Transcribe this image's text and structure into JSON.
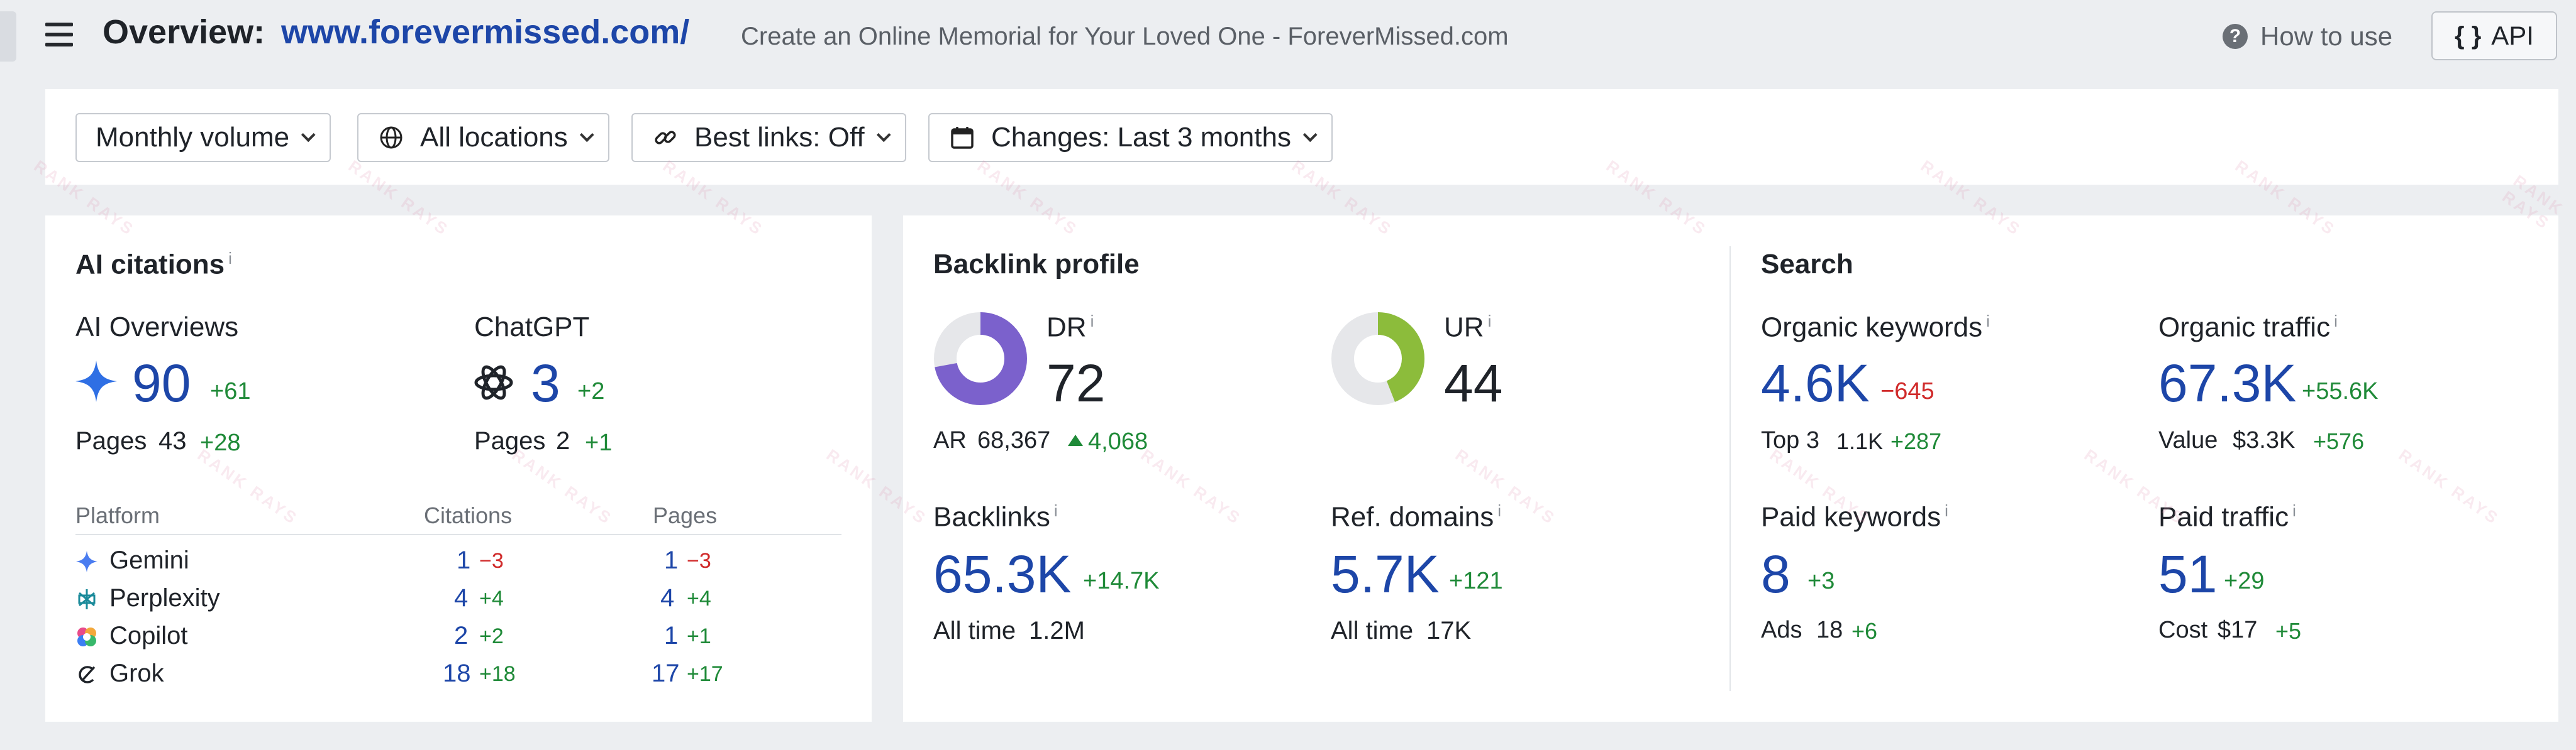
{
  "header": {
    "title_label": "Overview:",
    "title_url": "www.forevermissed.com/",
    "subtitle": "Create an Online Memorial for Your Loved One - ForeverMissed.com",
    "how_to_use": "How to use",
    "api_label": "API",
    "api_glyph": "{ }"
  },
  "toolbar": {
    "volume": "Monthly volume",
    "locations": "All locations",
    "best_links": "Best links: Off",
    "changes": "Changes: Last 3 months"
  },
  "ai_citations": {
    "title": "AI citations",
    "info": "i",
    "ai_overviews": {
      "label": "AI Overviews",
      "value": "90",
      "delta": "+61",
      "pages_label": "Pages",
      "pages_value": "43",
      "pages_delta": "+28"
    },
    "chatgpt": {
      "label": "ChatGPT",
      "value": "3",
      "delta": "+2",
      "pages_label": "Pages",
      "pages_value": "2",
      "pages_delta": "+1"
    },
    "table": {
      "headers": [
        "Platform",
        "Citations",
        "Pages"
      ],
      "rows": [
        {
          "name": "Gemini",
          "citations": "1",
          "citations_delta": "−3",
          "pages": "1",
          "pages_delta": "−3"
        },
        {
          "name": "Perplexity",
          "citations": "4",
          "citations_delta": "+4",
          "pages": "4",
          "pages_delta": "+4"
        },
        {
          "name": "Copilot",
          "citations": "2",
          "citations_delta": "+2",
          "pages": "1",
          "pages_delta": "+1"
        },
        {
          "name": "Grok",
          "citations": "18",
          "citations_delta": "+18",
          "pages": "17",
          "pages_delta": "+17"
        }
      ]
    }
  },
  "backlink_profile": {
    "title": "Backlink profile",
    "dr": {
      "label": "DR",
      "value": "72",
      "fill_percent": 72,
      "color": "#7b61cc"
    },
    "ur": {
      "label": "UR",
      "value": "44",
      "fill_percent": 44,
      "color": "#8cbc3b"
    },
    "ar": {
      "label": "AR",
      "value": "68,367",
      "delta": "4,068"
    },
    "backlinks": {
      "label": "Backlinks",
      "value": "65.3K",
      "delta": "+14.7K",
      "all_time_label": "All time",
      "all_time_value": "1.2M"
    },
    "ref_domains": {
      "label": "Ref. domains",
      "value": "5.7K",
      "delta": "+121",
      "all_time_label": "All time",
      "all_time_value": "17K"
    }
  },
  "search": {
    "title": "Search",
    "organic_keywords": {
      "label": "Organic keywords",
      "value": "4.6K",
      "delta": "−645",
      "sub_label": "Top 3",
      "sub_value": "1.1K",
      "sub_delta": "+287"
    },
    "organic_traffic": {
      "label": "Organic traffic",
      "value": "67.3K",
      "delta": "+55.6K",
      "sub_label": "Value",
      "sub_value": "$3.3K",
      "sub_delta": "+576"
    },
    "paid_keywords": {
      "label": "Paid keywords",
      "value": "8",
      "delta": "+3",
      "sub_label": "Ads",
      "sub_value": "18",
      "sub_delta": "+6"
    },
    "paid_traffic": {
      "label": "Paid traffic",
      "value": "51",
      "delta": "+29",
      "sub_label": "Cost",
      "sub_value": "$17",
      "sub_delta": "+5"
    }
  },
  "watermark": "RANK RAYS",
  "colors": {
    "accent_blue": "#1d46a8",
    "positive": "#1f8a38",
    "negative": "#d02a2a"
  }
}
